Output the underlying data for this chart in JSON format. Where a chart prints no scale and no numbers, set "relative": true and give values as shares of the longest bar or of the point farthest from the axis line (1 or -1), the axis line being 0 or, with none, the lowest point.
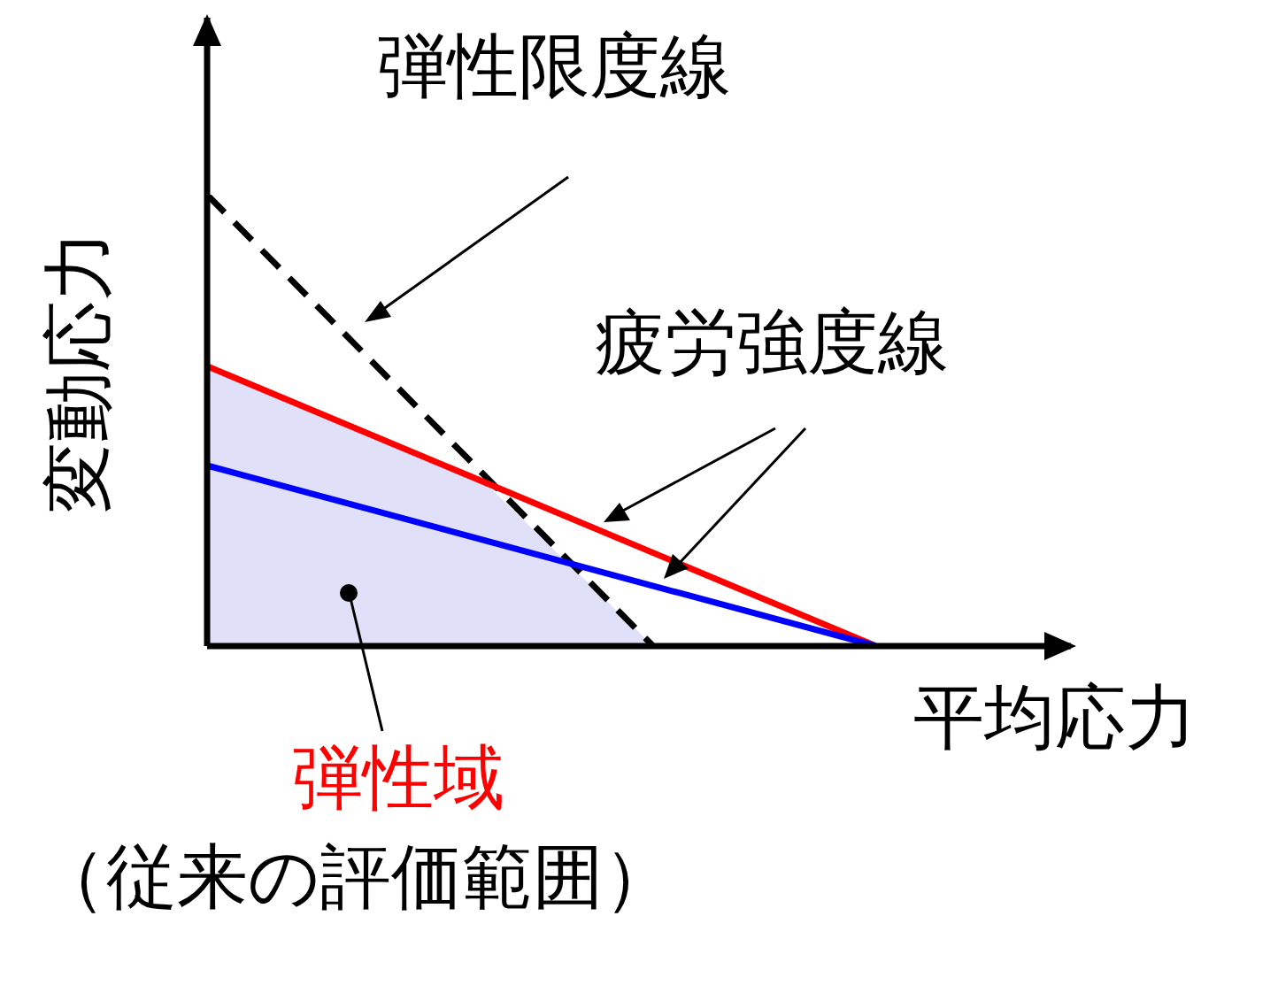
{
  "chart_data": {
    "type": "line",
    "relative": true,
    "xlabel": "平均応力",
    "ylabel": "変動応力",
    "marker": "none",
    "grid": false,
    "legend": false,
    "categories": [
      null,
      null,
      null,
      null,
      null,
      null,
      null,
      null,
      null,
      null,
      null,
      null,
      null
    ],
    "series": [
      {
        "type": "area",
        "color": "#e0e0f8",
        "values": [
          0.62,
          null,
          null,
          null,
          null,
          0.36,
          null,
          null,
          0,
          null,
          null,
          null,
          null
        ]
      },
      {
        "type": "line",
        "color": "#000000",
        "line_style": "dashed",
        "values": [
          1,
          null,
          null,
          null,
          null,
          null,
          null,
          null,
          0,
          null,
          null,
          null,
          null
        ]
      },
      {
        "type": "line",
        "color": "#ff0000",
        "values": [
          0.62,
          null,
          null,
          null,
          null,
          null,
          null,
          null,
          null,
          null,
          null,
          null,
          0
        ]
      },
      {
        "type": "line",
        "color": "#0000ff",
        "values": [
          0.4,
          null,
          null,
          null,
          null,
          null,
          null,
          null,
          null,
          null,
          null,
          null,
          0
        ]
      }
    ],
    "annotations": [
      "弾性限度線",
      "疲労強度線",
      "弾性域",
      "（従来の評価範囲）"
    ]
  }
}
